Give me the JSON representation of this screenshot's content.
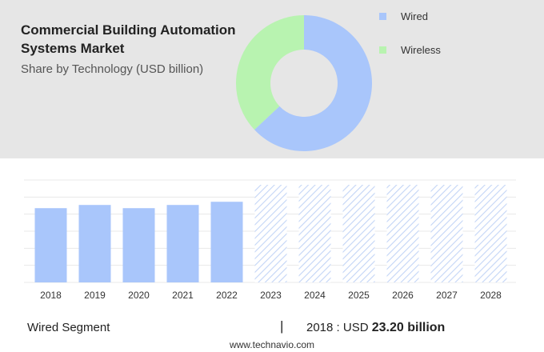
{
  "title": "Commercial Building Automation Systems Market",
  "subtitle": "Share by Technology (USD billion)",
  "colors": {
    "wired": "#a9c6fb",
    "wireless": "#b8f3b0",
    "forecast_hatch": "#c3d5f6"
  },
  "chart_data": [
    {
      "type": "pie",
      "variant": "donut",
      "series": [
        {
          "name": "Wired",
          "share": 0.63
        },
        {
          "name": "Wireless",
          "share": 0.37
        }
      ],
      "legend": "right"
    },
    {
      "type": "bar",
      "categories": [
        "2018",
        "2019",
        "2020",
        "2021",
        "2022",
        "2023",
        "2024",
        "2025",
        "2026",
        "2027",
        "2028"
      ],
      "values": [
        23.2,
        24.2,
        23.2,
        24.2,
        25.2,
        30.5,
        30.5,
        30.5,
        30.5,
        30.5,
        30.5
      ],
      "forecast": [
        false,
        false,
        false,
        false,
        false,
        true,
        true,
        true,
        true,
        true,
        true
      ],
      "ylim": [
        0,
        32
      ],
      "grid": true
    }
  ],
  "footer": {
    "segment_label": "Wired Segment",
    "separator": "|",
    "year": "2018",
    "value_prefix": ": USD",
    "value": "23.20 billion"
  },
  "source": "www.technavio.com"
}
